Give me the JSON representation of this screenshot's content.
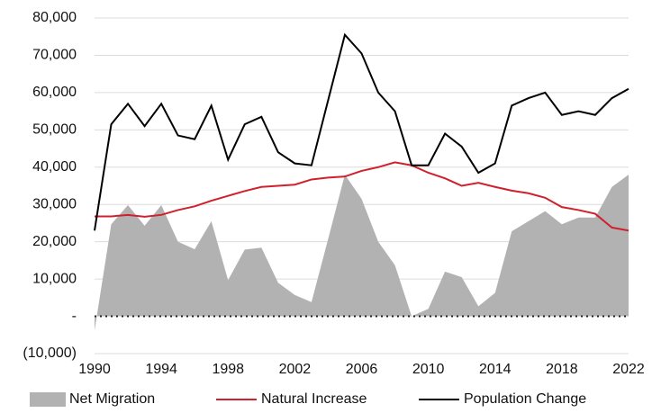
{
  "chart_data": {
    "type": "line",
    "x": [
      1990,
      1991,
      1992,
      1993,
      1994,
      1995,
      1996,
      1997,
      1998,
      1999,
      2000,
      2001,
      2002,
      2003,
      2004,
      2005,
      2006,
      2007,
      2008,
      2009,
      2010,
      2011,
      2012,
      2013,
      2014,
      2015,
      2016,
      2017,
      2018,
      2019,
      2020,
      2021,
      2022
    ],
    "xlim": [
      1990,
      2022
    ],
    "xticks": [
      1990,
      1994,
      1998,
      2002,
      2006,
      2010,
      2014,
      2018,
      2022
    ],
    "ylim": [
      -10000,
      80000
    ],
    "yticks": [
      {
        "value": -10000,
        "label": "(10,000)"
      },
      {
        "value": 0,
        "label": "-"
      },
      {
        "value": 10000,
        "label": "10,000"
      },
      {
        "value": 20000,
        "label": "20,000"
      },
      {
        "value": 30000,
        "label": "30,000"
      },
      {
        "value": 40000,
        "label": "40,000"
      },
      {
        "value": 50000,
        "label": "50,000"
      },
      {
        "value": 60000,
        "label": "60,000"
      },
      {
        "value": 70000,
        "label": "70,000"
      },
      {
        "value": 80000,
        "label": "80,000"
      }
    ],
    "grid": true,
    "legend": "bottom",
    "series": [
      {
        "name": "Net Migration",
        "kind": "area",
        "color": "#b2b2b2",
        "values": [
          -3800,
          24700,
          29800,
          24300,
          29800,
          20000,
          18000,
          25500,
          9700,
          17900,
          18400,
          9000,
          5700,
          3800,
          20800,
          38000,
          31500,
          20000,
          13700,
          0,
          2000,
          12000,
          10500,
          2700,
          6300,
          22800,
          25500,
          28200,
          24700,
          26500,
          26500,
          34700,
          38000
        ]
      },
      {
        "name": "Natural Increase",
        "kind": "line",
        "color": "#d0202e",
        "values": [
          26800,
          26800,
          27200,
          26700,
          27200,
          28500,
          29500,
          31000,
          32300,
          33600,
          34700,
          35000,
          35300,
          36700,
          37200,
          37500,
          39000,
          40000,
          41300,
          40500,
          38500,
          37000,
          35000,
          35800,
          34700,
          33700,
          33000,
          31800,
          29300,
          28500,
          27500,
          23800,
          23000
        ]
      },
      {
        "name": "Population Change",
        "kind": "line",
        "color": "#000000",
        "values": [
          23000,
          51500,
          57000,
          51000,
          57000,
          48500,
          47500,
          56500,
          42000,
          51500,
          53500,
          44000,
          41000,
          40500,
          58000,
          75500,
          70500,
          60000,
          55000,
          40500,
          40500,
          49000,
          45500,
          38500,
          41000,
          56500,
          58500,
          60000,
          54000,
          55000,
          54000,
          58500,
          61000
        ]
      }
    ]
  }
}
